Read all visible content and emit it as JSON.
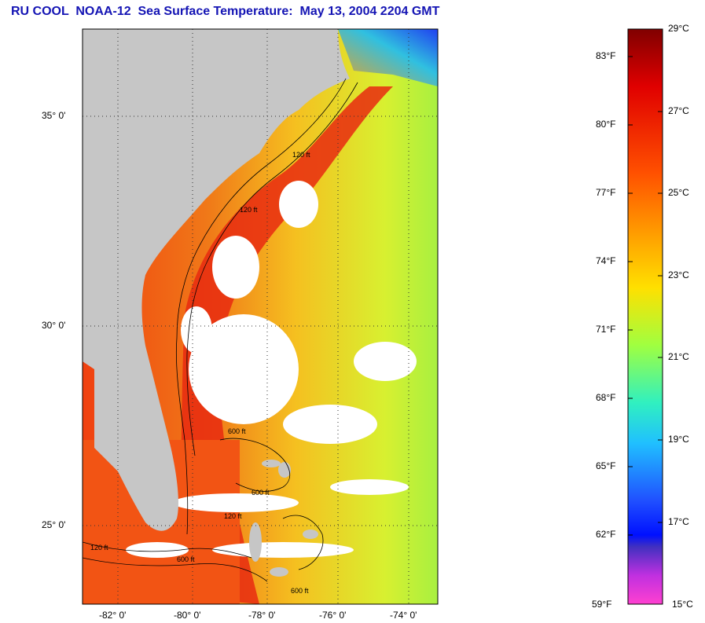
{
  "title": "RU COOL  NOAA-12  Sea Surface Temperature:  May 13, 2004 2204 GMT",
  "lat_labels": [
    "35° 0'",
    "30° 0'",
    "25° 0'"
  ],
  "lon_labels": [
    "-82° 0'",
    "-80° 0'",
    "-78° 0'",
    "-76° 0'",
    "-74° 0'"
  ],
  "contour_labels": [
    "120 ft",
    "600 ft",
    "120 ft",
    "600 ft",
    "120 ft",
    "600 ft",
    "120 ft",
    "600 ft"
  ],
  "colorbar": {
    "fahrenheit": [
      "83°F",
      "80°F",
      "77°F",
      "74°F",
      "71°F",
      "68°F",
      "65°F",
      "62°F",
      "59°F"
    ],
    "celsius": [
      "29°C",
      "27°C",
      "25°C",
      "23°C",
      "21°C",
      "19°C",
      "17°C",
      "15°C"
    ]
  },
  "colors": {
    "title": "#1414b4",
    "land": "#c6c6c6",
    "cloud": "#ffffff",
    "warm": "#f03a10",
    "cool": "#f5f02a"
  }
}
